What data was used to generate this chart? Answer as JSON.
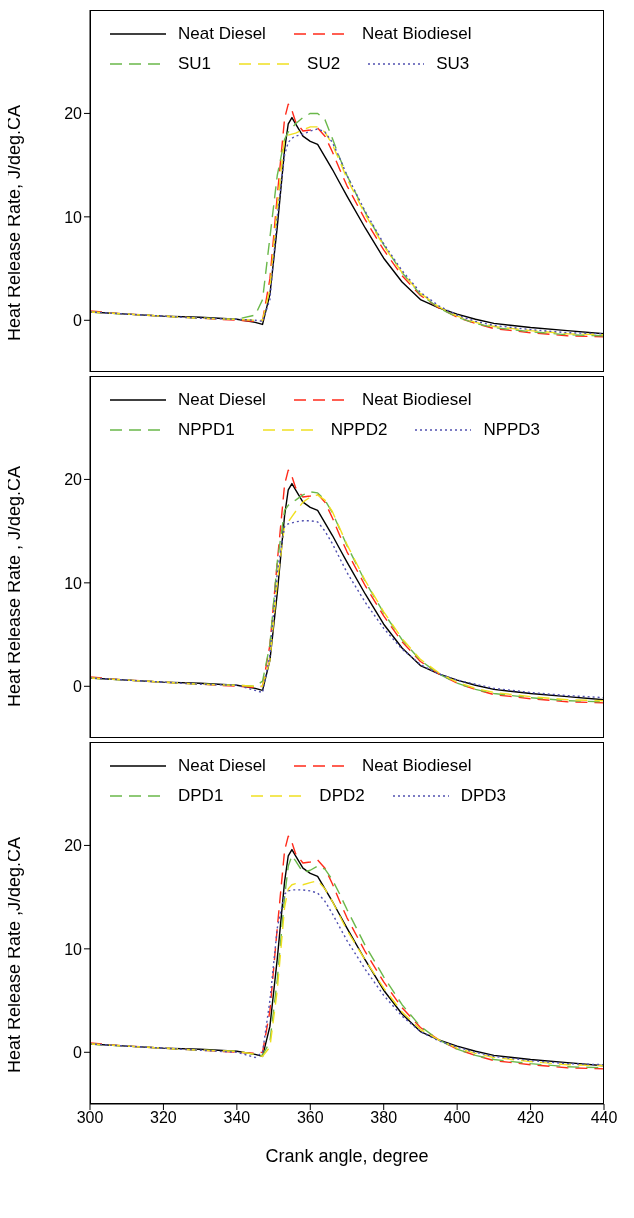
{
  "chart_data": [
    {
      "type": "line",
      "ylabel": "Heat Release Rate, J/deg.CA",
      "x": [
        300,
        310,
        320,
        330,
        340,
        345,
        347,
        349,
        351,
        353,
        354,
        355,
        356,
        358,
        360,
        362,
        364,
        366,
        368,
        370,
        375,
        380,
        385,
        390,
        395,
        400,
        405,
        410,
        420,
        430,
        440
      ],
      "xlim": [
        300,
        440
      ],
      "xticks": [
        300,
        320,
        340,
        360,
        380,
        400,
        420,
        440
      ],
      "ylim": [
        -5,
        30
      ],
      "yticks": [
        0,
        10,
        20
      ],
      "tick_labels": "y",
      "legend": "top",
      "marker": "none",
      "series": [
        {
          "name": "Neat Diesel",
          "color": "#000000",
          "line_style": "solid",
          "values": [
            0.8,
            0.6,
            0.4,
            0.3,
            0.1,
            -0.2,
            -0.4,
            2.5,
            9,
            16.5,
            19,
            19.6,
            19,
            17.8,
            17.3,
            17,
            15.8,
            14.6,
            13.3,
            12,
            8.9,
            6,
            3.7,
            2,
            1.2,
            0.6,
            0.1,
            -0.3,
            -0.7,
            -1,
            -1.3
          ]
        },
        {
          "name": "Neat Biodiesel",
          "color": "#ff2a1a",
          "line_style": "dashed",
          "values": [
            0.9,
            0.6,
            0.4,
            0.2,
            0,
            -0.1,
            0,
            4,
            12,
            19.5,
            20.9,
            20.3,
            19.2,
            18.3,
            18.4,
            18.6,
            17.8,
            16.3,
            14.6,
            13,
            9.7,
            6.8,
            4.3,
            2.4,
            1.2,
            0.3,
            -0.3,
            -0.8,
            -1.2,
            -1.5,
            -1.6
          ]
        },
        {
          "name": "SU1",
          "color": "#6ab84a",
          "line_style": "dashed",
          "values": [
            0.8,
            0.6,
            0.4,
            0.2,
            0.1,
            0.5,
            2,
            8,
            14,
            17.5,
            18.2,
            18.6,
            19,
            19.6,
            20,
            20,
            19.4,
            17.6,
            15.7,
            14,
            10.4,
            7.3,
            4.6,
            2.5,
            1.2,
            0.3,
            -0.3,
            -0.7,
            -1.1,
            -1.4,
            -1.5
          ]
        },
        {
          "name": "SU2",
          "color": "#f0e020",
          "line_style": "dashed",
          "values": [
            0.8,
            0.6,
            0.4,
            0.2,
            0.1,
            0,
            0,
            3,
            11,
            17.6,
            17.9,
            18,
            18.1,
            18.4,
            18.7,
            18.7,
            18.2,
            17,
            15.4,
            13.7,
            10.2,
            7.2,
            4.6,
            2.6,
            1.3,
            0.4,
            -0.2,
            -0.6,
            -1,
            -1.3,
            -1.4
          ]
        },
        {
          "name": "SU3",
          "color": "#5050b0",
          "line_style": "dotted",
          "values": [
            0.8,
            0.6,
            0.4,
            0.2,
            0.1,
            0,
            -0.1,
            2,
            10,
            16,
            17.2,
            17.6,
            17.8,
            18,
            18.3,
            18.5,
            18.2,
            17.2,
            15.7,
            14,
            10.5,
            7.4,
            4.8,
            2.7,
            1.4,
            0.5,
            -0.1,
            -0.5,
            -0.9,
            -1.2,
            -1.3
          ]
        }
      ]
    },
    {
      "type": "line",
      "ylabel": "Heat Release Rate , J/deg.CA",
      "x": [
        300,
        310,
        320,
        330,
        340,
        345,
        347,
        349,
        351,
        353,
        354,
        355,
        356,
        358,
        360,
        362,
        364,
        366,
        368,
        370,
        375,
        380,
        385,
        390,
        395,
        400,
        405,
        410,
        420,
        430,
        440
      ],
      "xlim": [
        300,
        440
      ],
      "xticks": [
        300,
        320,
        340,
        360,
        380,
        400,
        420,
        440
      ],
      "ylim": [
        -5,
        30
      ],
      "yticks": [
        0,
        10,
        20
      ],
      "tick_labels": "y",
      "legend": "top",
      "marker": "none",
      "series": [
        {
          "name": "Neat Diesel",
          "color": "#000000",
          "line_style": "solid",
          "values": [
            0.8,
            0.6,
            0.4,
            0.3,
            0.1,
            -0.2,
            -0.4,
            2.5,
            9,
            16.5,
            19,
            19.6,
            19,
            17.8,
            17.3,
            17,
            15.8,
            14.6,
            13.3,
            12,
            8.9,
            6,
            3.7,
            2,
            1.2,
            0.6,
            0.1,
            -0.3,
            -0.7,
            -1,
            -1.3
          ]
        },
        {
          "name": "Neat Biodiesel",
          "color": "#ff2a1a",
          "line_style": "dashed",
          "values": [
            0.9,
            0.6,
            0.4,
            0.2,
            0,
            -0.1,
            0,
            4,
            12,
            19.5,
            20.9,
            20.3,
            19.2,
            18.3,
            18.4,
            18.6,
            17.8,
            16.3,
            14.6,
            13,
            9.7,
            6.8,
            4.3,
            2.4,
            1.2,
            0.3,
            -0.3,
            -0.8,
            -1.2,
            -1.5,
            -1.6
          ]
        },
        {
          "name": "NPPD1",
          "color": "#6ab84a",
          "line_style": "dashed",
          "values": [
            0.8,
            0.6,
            0.4,
            0.2,
            0.1,
            0,
            0.5,
            4,
            12,
            17,
            17.5,
            17.8,
            18,
            18.5,
            18.8,
            18.7,
            18,
            16.8,
            15.2,
            13.6,
            10.1,
            7.1,
            4.5,
            2.5,
            1.2,
            0.3,
            -0.3,
            -0.7,
            -1.1,
            -1.4,
            -1.5
          ]
        },
        {
          "name": "NPPD2",
          "color": "#f0e020",
          "line_style": "dashed",
          "values": [
            0.8,
            0.6,
            0.4,
            0.2,
            0.1,
            0,
            0,
            2.5,
            10,
            15.6,
            15.9,
            16.4,
            16.9,
            17.8,
            18.3,
            18.5,
            18,
            16.9,
            15.3,
            13.7,
            10.2,
            7.2,
            4.6,
            2.6,
            1.3,
            0.4,
            -0.2,
            -0.6,
            -1,
            -1.3,
            -1.4
          ]
        },
        {
          "name": "NPPD3",
          "color": "#5050b0",
          "line_style": "dotted",
          "values": [
            0.8,
            0.6,
            0.4,
            0.2,
            0.1,
            -0.4,
            -0.6,
            3,
            11,
            15.5,
            15.7,
            15.8,
            15.9,
            16,
            16,
            15.9,
            15,
            13.8,
            12.4,
            11,
            8.1,
            5.6,
            3.6,
            2.1,
            1.2,
            0.6,
            0.2,
            -0.2,
            -0.6,
            -0.9,
            -1.1
          ]
        }
      ]
    },
    {
      "type": "line",
      "ylabel": "Heat Release Rate ,J/deg.CA",
      "xlabel": "Crank angle, degree",
      "x": [
        300,
        310,
        320,
        330,
        340,
        345,
        347,
        349,
        351,
        353,
        354,
        355,
        356,
        358,
        360,
        362,
        364,
        366,
        368,
        370,
        375,
        380,
        385,
        390,
        395,
        400,
        405,
        410,
        420,
        430,
        440
      ],
      "xlim": [
        300,
        440
      ],
      "xticks": [
        300,
        320,
        340,
        360,
        380,
        400,
        420,
        440
      ],
      "ylim": [
        -5,
        30
      ],
      "yticks": [
        0,
        10,
        20
      ],
      "legend": "top",
      "marker": "none",
      "series": [
        {
          "name": "Neat Diesel",
          "color": "#000000",
          "line_style": "solid",
          "values": [
            0.8,
            0.6,
            0.4,
            0.3,
            0.1,
            -0.2,
            -0.4,
            2.5,
            9,
            16.5,
            19,
            19.6,
            19,
            17.8,
            17.3,
            17,
            15.8,
            14.6,
            13.3,
            12,
            8.9,
            6,
            3.7,
            2,
            1.2,
            0.6,
            0.1,
            -0.3,
            -0.7,
            -1,
            -1.3
          ]
        },
        {
          "name": "Neat Biodiesel",
          "color": "#ff2a1a",
          "line_style": "dashed",
          "values": [
            0.9,
            0.6,
            0.4,
            0.2,
            0,
            -0.1,
            0,
            4,
            12,
            19.5,
            20.9,
            20.3,
            19.2,
            18.3,
            18.4,
            18.6,
            17.8,
            16.3,
            14.6,
            13,
            9.7,
            6.8,
            4.3,
            2.4,
            1.2,
            0.3,
            -0.3,
            -0.8,
            -1.2,
            -1.5,
            -1.6
          ]
        },
        {
          "name": "DPD1",
          "color": "#6ab84a",
          "line_style": "dashed",
          "values": [
            0.8,
            0.6,
            0.4,
            0.2,
            0.1,
            -0.2,
            -0.3,
            1,
            7,
            15,
            18,
            19,
            18.5,
            17.4,
            17.6,
            18,
            17.7,
            16.7,
            15.3,
            13.8,
            10.3,
            7.3,
            4.6,
            2.5,
            1.2,
            0.3,
            -0.3,
            -0.7,
            -1.1,
            -1.4,
            -1.5
          ]
        },
        {
          "name": "DPD2",
          "color": "#f0e020",
          "line_style": "dashed",
          "values": [
            0.8,
            0.6,
            0.4,
            0.2,
            0.1,
            -0.2,
            -0.4,
            0.5,
            6,
            14,
            15.8,
            16.2,
            16.3,
            16.2,
            16.4,
            16.6,
            15.8,
            14.6,
            13.2,
            11.8,
            8.9,
            6.2,
            3.9,
            2.2,
            1.2,
            0.4,
            -0.1,
            -0.5,
            -0.9,
            -1.2,
            -1.3
          ]
        },
        {
          "name": "DPD3",
          "color": "#5050b0",
          "line_style": "dotted",
          "values": [
            0.8,
            0.6,
            0.4,
            0.2,
            0,
            -0.5,
            0,
            5,
            12,
            15.3,
            15.6,
            15.7,
            15.7,
            15.7,
            15.6,
            15.4,
            14.6,
            13.4,
            12.1,
            10.8,
            8,
            5.5,
            3.5,
            2,
            1.1,
            0.5,
            0,
            -0.4,
            -0.8,
            -1.1,
            -1.2
          ]
        }
      ]
    }
  ]
}
